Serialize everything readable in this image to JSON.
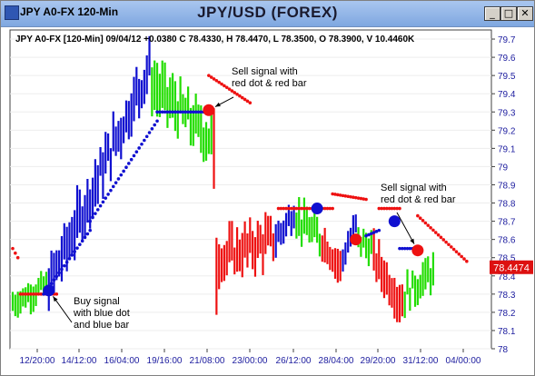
{
  "window": {
    "title": "JPY A0-FX 120-Min",
    "chart_title": "JPY/USD (FOREX)",
    "buttons": {
      "minimize": "_",
      "maximize": "□",
      "close": "✕"
    }
  },
  "header_line": "JPY A0-FX [120-Min] 09/04/12 +0.0380 C 78.4330, H 78.4470, L 78.3500, O 78.3900, V 10.4460K",
  "last_price_label": "78.4474",
  "annotations": [
    {
      "text_lines": [
        "Sell signal with",
        "red dot & red bar"
      ]
    },
    {
      "text_lines": [
        "Sell signal with",
        "red dot & red bar"
      ]
    },
    {
      "text_lines": [
        "Buy signal",
        "with blue dot",
        "and blue bar"
      ]
    }
  ],
  "colors": {
    "blue": "#1010d0",
    "green": "#22dd00",
    "red": "#ee1111",
    "axis": "#2020a0"
  },
  "chart_data": {
    "type": "bar",
    "symbol": "JPY/USD",
    "interval": "120-Min",
    "ylim": [
      78.0,
      79.75
    ],
    "yticks": [
      78,
      78.1,
      78.2,
      78.3,
      78.4,
      78.5,
      78.6,
      78.7,
      78.8,
      78.9,
      79,
      79.1,
      79.2,
      79.3,
      79.4,
      79.5,
      79.6,
      79.7
    ],
    "ytick_labels": [
      "78",
      "78.1",
      "78.2",
      "78.3",
      "78.4",
      "78.5",
      "78.6",
      "78.7",
      "78.8",
      "78.9",
      "79",
      "79.1",
      "79.2",
      "79.3",
      "79.4",
      "79.5",
      "79.6",
      "79.7"
    ],
    "xtick_labels": [
      "12/20:00",
      "14/12:00",
      "16/04:00",
      "19/16:00",
      "21/08:00",
      "23/00:00",
      "26/12:00",
      "28/04:00",
      "29/20:00",
      "31/12:00",
      "04/00:00"
    ],
    "last_price": 78.4474,
    "segments": [
      {
        "color": "green",
        "n": 14,
        "open": 78.25,
        "close": 78.35,
        "range": 0.12
      },
      {
        "color": "blue",
        "n": 40,
        "open": 78.35,
        "close": 79.55,
        "range": 0.22
      },
      {
        "color": "green",
        "n": 24,
        "open": 79.45,
        "close": 79.15,
        "range": 0.22
      },
      {
        "color": "red",
        "n": 2,
        "open": 79.0,
        "close": 78.45,
        "range": 0.55
      },
      {
        "color": "red",
        "n": 22,
        "open": 78.5,
        "close": 78.6,
        "range": 0.2
      },
      {
        "color": "blue",
        "n": 8,
        "open": 78.6,
        "close": 78.75,
        "range": 0.14
      },
      {
        "color": "green",
        "n": 10,
        "open": 78.72,
        "close": 78.6,
        "range": 0.16
      },
      {
        "color": "red",
        "n": 8,
        "open": 78.6,
        "close": 78.45,
        "range": 0.16
      },
      {
        "color": "blue",
        "n": 6,
        "open": 78.5,
        "close": 78.68,
        "range": 0.12
      },
      {
        "color": "green",
        "n": 6,
        "open": 78.6,
        "close": 78.55,
        "range": 0.14
      },
      {
        "color": "red",
        "n": 12,
        "open": 78.5,
        "close": 78.25,
        "range": 0.18
      },
      {
        "color": "green",
        "n": 12,
        "open": 78.3,
        "close": 78.42,
        "range": 0.16
      }
    ],
    "stop_dots": [
      {
        "color": "red",
        "from": 0,
        "to": 2,
        "start": 78.55,
        "end": 78.5
      },
      {
        "color": "red",
        "from": 3,
        "to": 17,
        "start": 78.3,
        "end": 78.3
      },
      {
        "color": "blue",
        "from": 12,
        "to": 30,
        "start": 78.3,
        "end": 78.65
      },
      {
        "color": "blue",
        "from": 30,
        "to": 56,
        "start": 78.7,
        "end": 79.25
      },
      {
        "color": "blue",
        "from": 56,
        "to": 76,
        "start": 79.3,
        "end": 79.3
      },
      {
        "color": "red",
        "from": 76,
        "to": 92,
        "start": 79.5,
        "end": 79.35
      },
      {
        "color": "red",
        "from": 103,
        "to": 124,
        "start": 78.77,
        "end": 78.77
      },
      {
        "color": "red",
        "from": 124,
        "to": 137,
        "start": 78.85,
        "end": 78.82
      },
      {
        "color": "blue",
        "from": 137,
        "to": 142,
        "start": 78.62,
        "end": 78.65
      },
      {
        "color": "red",
        "from": 142,
        "to": 150,
        "start": 78.77,
        "end": 78.77
      },
      {
        "color": "blue",
        "from": 150,
        "to": 156,
        "start": 78.55,
        "end": 78.55
      },
      {
        "color": "red",
        "from": 157,
        "to": 176,
        "start": 78.73,
        "end": 78.48
      }
    ],
    "signals": [
      {
        "kind": "buy",
        "color": "blue",
        "bar": 14,
        "price": 78.32,
        "note": 2
      },
      {
        "kind": "sell",
        "color": "red",
        "bar": 76,
        "price": 79.31,
        "note": 0
      },
      {
        "kind": "buy",
        "color": "blue",
        "bar": 118,
        "price": 78.77,
        "note": null
      },
      {
        "kind": "sell",
        "color": "red",
        "bar": 133,
        "price": 78.6,
        "note": null
      },
      {
        "kind": "buy",
        "color": "blue",
        "bar": 148,
        "price": 78.7,
        "note": null
      },
      {
        "kind": "sell",
        "color": "red",
        "bar": 157,
        "price": 78.54,
        "note": 1
      }
    ]
  }
}
